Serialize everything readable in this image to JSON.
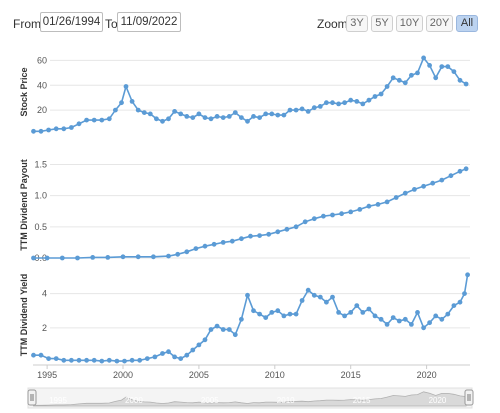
{
  "toolbar": {
    "from_label": "From:",
    "from_value": "01/26/1994",
    "to_label": "To:",
    "to_value": "11/09/2022",
    "zoom_label": "Zoom:",
    "zoom_buttons": [
      "3Y",
      "5Y",
      "10Y",
      "20Y",
      "All"
    ],
    "active_zoom": "All"
  },
  "colors": {
    "series": "#5b9bd5",
    "active_zoom_bg": "#bcd3f0",
    "navigator_fill": "#d9d9d9"
  },
  "x_axis": {
    "ticks": [
      "1995",
      "2000",
      "2005",
      "2010",
      "2015",
      "2020"
    ]
  },
  "navigator": {
    "ticks": [
      "1995",
      "2000",
      "2005",
      "2010",
      "2015",
      "2020"
    ]
  },
  "chart_data": [
    {
      "type": "line",
      "ylabel": "Stock Price",
      "ylim": [
        0,
        70
      ],
      "yticks": [
        20,
        40,
        60
      ],
      "x": [
        1994.1,
        1994.6,
        1995.1,
        1995.6,
        1996.1,
        1996.6,
        1997.1,
        1997.6,
        1998.1,
        1998.6,
        1999.1,
        1999.5,
        1999.9,
        2000.2,
        2000.6,
        2001.0,
        2001.4,
        2001.8,
        2002.2,
        2002.6,
        2003.0,
        2003.4,
        2003.8,
        2004.2,
        2004.6,
        2005.0,
        2005.4,
        2005.8,
        2006.2,
        2006.6,
        2007.0,
        2007.4,
        2007.8,
        2008.2,
        2008.6,
        2009.0,
        2009.4,
        2009.8,
        2010.2,
        2010.6,
        2011.0,
        2011.4,
        2011.8,
        2012.2,
        2012.6,
        2013.0,
        2013.4,
        2013.8,
        2014.2,
        2014.6,
        2015.0,
        2015.4,
        2015.8,
        2016.2,
        2016.6,
        2017.0,
        2017.4,
        2017.8,
        2018.2,
        2018.6,
        2019.0,
        2019.4,
        2019.8,
        2020.2,
        2020.6,
        2021.0,
        2021.4,
        2021.8,
        2022.2,
        2022.6
      ],
      "values": [
        3,
        3,
        4,
        5,
        5,
        6,
        9,
        12,
        12,
        12,
        13,
        20,
        26,
        39,
        27,
        20,
        18,
        17,
        13,
        11,
        13,
        19,
        17,
        15,
        14,
        17,
        14,
        13,
        15,
        14,
        15,
        18,
        14,
        11,
        15,
        14,
        17,
        17,
        16,
        16,
        20,
        20,
        21,
        19,
        22,
        23,
        26,
        26,
        25,
        26,
        28,
        27,
        25,
        28,
        31,
        33,
        39,
        46,
        44,
        42,
        48,
        50,
        62,
        56,
        46,
        55,
        55,
        51,
        44,
        41
      ]
    },
    {
      "type": "line",
      "ylabel": "TTM Dividend Payout",
      "ylim": [
        0,
        1.7
      ],
      "yticks": [
        "0.0",
        "0.5",
        "1.0",
        "1.5"
      ],
      "x": [
        1994.1,
        1995.0,
        1996.0,
        1997.0,
        1998.0,
        1999.0,
        2000.0,
        2001.0,
        2002.0,
        2003.0,
        2003.6,
        2004.2,
        2004.8,
        2005.4,
        2006.0,
        2006.6,
        2007.2,
        2007.8,
        2008.4,
        2009.0,
        2009.6,
        2010.2,
        2010.8,
        2011.4,
        2012.0,
        2012.6,
        2013.2,
        2013.8,
        2014.4,
        2015.0,
        2015.6,
        2016.2,
        2016.8,
        2017.4,
        2018.0,
        2018.6,
        2019.2,
        2019.8,
        2020.4,
        2021.0,
        2021.6,
        2022.2,
        2022.6
      ],
      "values": [
        0.0,
        0.0,
        0.0,
        0.0,
        0.01,
        0.01,
        0.02,
        0.02,
        0.02,
        0.03,
        0.06,
        0.1,
        0.15,
        0.19,
        0.22,
        0.25,
        0.27,
        0.31,
        0.35,
        0.36,
        0.38,
        0.42,
        0.46,
        0.5,
        0.58,
        0.63,
        0.67,
        0.69,
        0.71,
        0.74,
        0.78,
        0.83,
        0.86,
        0.9,
        0.97,
        1.04,
        1.1,
        1.15,
        1.2,
        1.25,
        1.32,
        1.39,
        1.43
      ]
    },
    {
      "type": "line",
      "ylabel": "TTM Dividend Yield",
      "ylim": [
        0,
        5.5
      ],
      "yticks": [
        2,
        4
      ],
      "x": [
        1994.1,
        1994.6,
        1995.1,
        1995.6,
        1996.1,
        1996.6,
        1997.1,
        1997.6,
        1998.1,
        1998.6,
        1999.1,
        1999.6,
        2000.1,
        2000.6,
        2001.1,
        2001.6,
        2002.1,
        2002.6,
        2003.0,
        2003.4,
        2003.8,
        2004.2,
        2004.6,
        2005.0,
        2005.4,
        2005.8,
        2006.2,
        2006.6,
        2007.0,
        2007.4,
        2007.8,
        2008.2,
        2008.6,
        2009.0,
        2009.4,
        2009.8,
        2010.2,
        2010.6,
        2011.0,
        2011.4,
        2011.8,
        2012.2,
        2012.6,
        2013.0,
        2013.4,
        2013.8,
        2014.2,
        2014.6,
        2015.0,
        2015.4,
        2015.8,
        2016.2,
        2016.6,
        2017.0,
        2017.4,
        2017.8,
        2018.2,
        2018.6,
        2019.0,
        2019.4,
        2019.8,
        2020.2,
        2020.6,
        2021.0,
        2021.4,
        2021.8,
        2022.2,
        2022.5,
        2022.7
      ],
      "values": [
        0.4,
        0.4,
        0.2,
        0.2,
        0.1,
        0.1,
        0.1,
        0.1,
        0.1,
        0.05,
        0.1,
        0.05,
        0.05,
        0.1,
        0.1,
        0.2,
        0.3,
        0.5,
        0.6,
        0.3,
        0.2,
        0.4,
        0.7,
        1.0,
        1.3,
        1.9,
        2.1,
        1.9,
        1.9,
        1.6,
        2.5,
        3.9,
        3.0,
        2.8,
        2.6,
        2.9,
        3.0,
        2.7,
        2.8,
        2.8,
        3.6,
        4.2,
        3.9,
        3.8,
        3.5,
        3.8,
        2.9,
        2.7,
        2.9,
        3.3,
        2.9,
        3.1,
        2.7,
        2.5,
        2.2,
        2.6,
        2.4,
        2.5,
        2.2,
        2.9,
        2.0,
        2.3,
        2.7,
        2.5,
        2.8,
        3.3,
        3.5,
        4.0,
        5.1
      ]
    }
  ]
}
